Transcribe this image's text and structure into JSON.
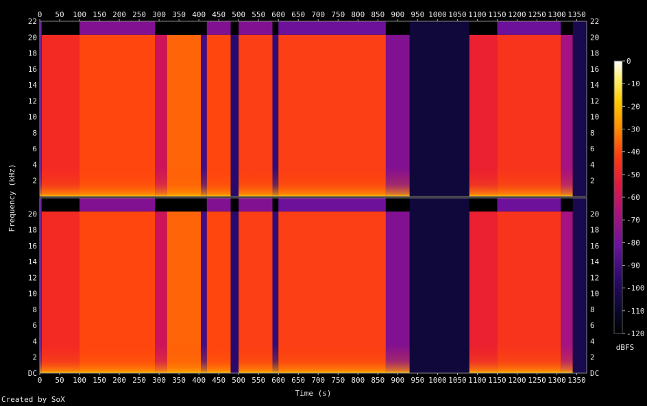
{
  "credit": "Created by SoX",
  "colorbar_unit": "dBFS",
  "chart_data": {
    "type": "heatmap",
    "subtype": "spectrogram",
    "title": "",
    "xlabel": "Time (s)",
    "ylabel": "Frequency (kHz)",
    "xlim": [
      0,
      1375
    ],
    "ylim": [
      0,
      22
    ],
    "x_ticks": [
      "0",
      "50",
      "100",
      "150",
      "200",
      "250",
      "300",
      "350",
      "400",
      "450",
      "500",
      "550",
      "600",
      "650",
      "700",
      "750",
      "800",
      "850",
      "900",
      "950",
      "1000",
      "1050",
      "1100",
      "1150",
      "1200",
      "1250",
      "1300",
      "1350"
    ],
    "y_ticks_top": [
      "2",
      "4",
      "6",
      "8",
      "10",
      "12",
      "14",
      "16",
      "18",
      "20",
      "22"
    ],
    "y_ticks_bottom": [
      "DC",
      "2",
      "4",
      "6",
      "8",
      "10",
      "12",
      "14",
      "16",
      "18",
      "20"
    ],
    "colorbar": {
      "label": "dBFS",
      "range": [
        -120,
        0
      ],
      "ticks": [
        "0",
        "-10",
        "-20",
        "-30",
        "-40",
        "-50",
        "-60",
        "-70",
        "-80",
        "-90",
        "-100",
        "-110",
        "-120"
      ]
    },
    "channels": 2,
    "segments": [
      {
        "t0": 0,
        "t1": 5,
        "level": -90,
        "cutoff_khz": 22,
        "high_level": -90
      },
      {
        "t0": 5,
        "t1": 100,
        "level": -58,
        "cutoff_khz": 20.3,
        "high_level": -120
      },
      {
        "t0": 100,
        "t1": 290,
        "level": -50,
        "cutoff_khz": 20.3,
        "high_level": -85
      },
      {
        "t0": 290,
        "t1": 320,
        "level": -72,
        "cutoff_khz": 20.3,
        "high_level": -120
      },
      {
        "t0": 320,
        "t1": 405,
        "level": -45,
        "cutoff_khz": 20.3,
        "high_level": -120
      },
      {
        "t0": 405,
        "t1": 420,
        "level": -95,
        "cutoff_khz": 20.3,
        "high_level": -120
      },
      {
        "t0": 420,
        "t1": 480,
        "level": -50,
        "cutoff_khz": 20.3,
        "high_level": -85
      },
      {
        "t0": 480,
        "t1": 500,
        "level": -100,
        "cutoff_khz": 20.3,
        "high_level": -120
      },
      {
        "t0": 500,
        "t1": 585,
        "level": -52,
        "cutoff_khz": 20.3,
        "high_level": -85
      },
      {
        "t0": 585,
        "t1": 600,
        "level": -98,
        "cutoff_khz": 20.3,
        "high_level": -120
      },
      {
        "t0": 600,
        "t1": 870,
        "level": -52,
        "cutoff_khz": 20.3,
        "high_level": -88
      },
      {
        "t0": 870,
        "t1": 930,
        "level": -85,
        "cutoff_khz": 20.3,
        "high_level": -120
      },
      {
        "t0": 930,
        "t1": 1080,
        "level": -108,
        "cutoff_khz": 22,
        "high_level": -110
      },
      {
        "t0": 1080,
        "t1": 1150,
        "level": -62,
        "cutoff_khz": 20.3,
        "high_level": -120
      },
      {
        "t0": 1150,
        "t1": 1310,
        "level": -55,
        "cutoff_khz": 20.3,
        "high_level": -88
      },
      {
        "t0": 1310,
        "t1": 1340,
        "level": -80,
        "cutoff_khz": 20.3,
        "high_level": -120
      },
      {
        "t0": 1340,
        "t1": 1375,
        "level": -105,
        "cutoff_khz": 22,
        "high_level": -110
      }
    ]
  }
}
